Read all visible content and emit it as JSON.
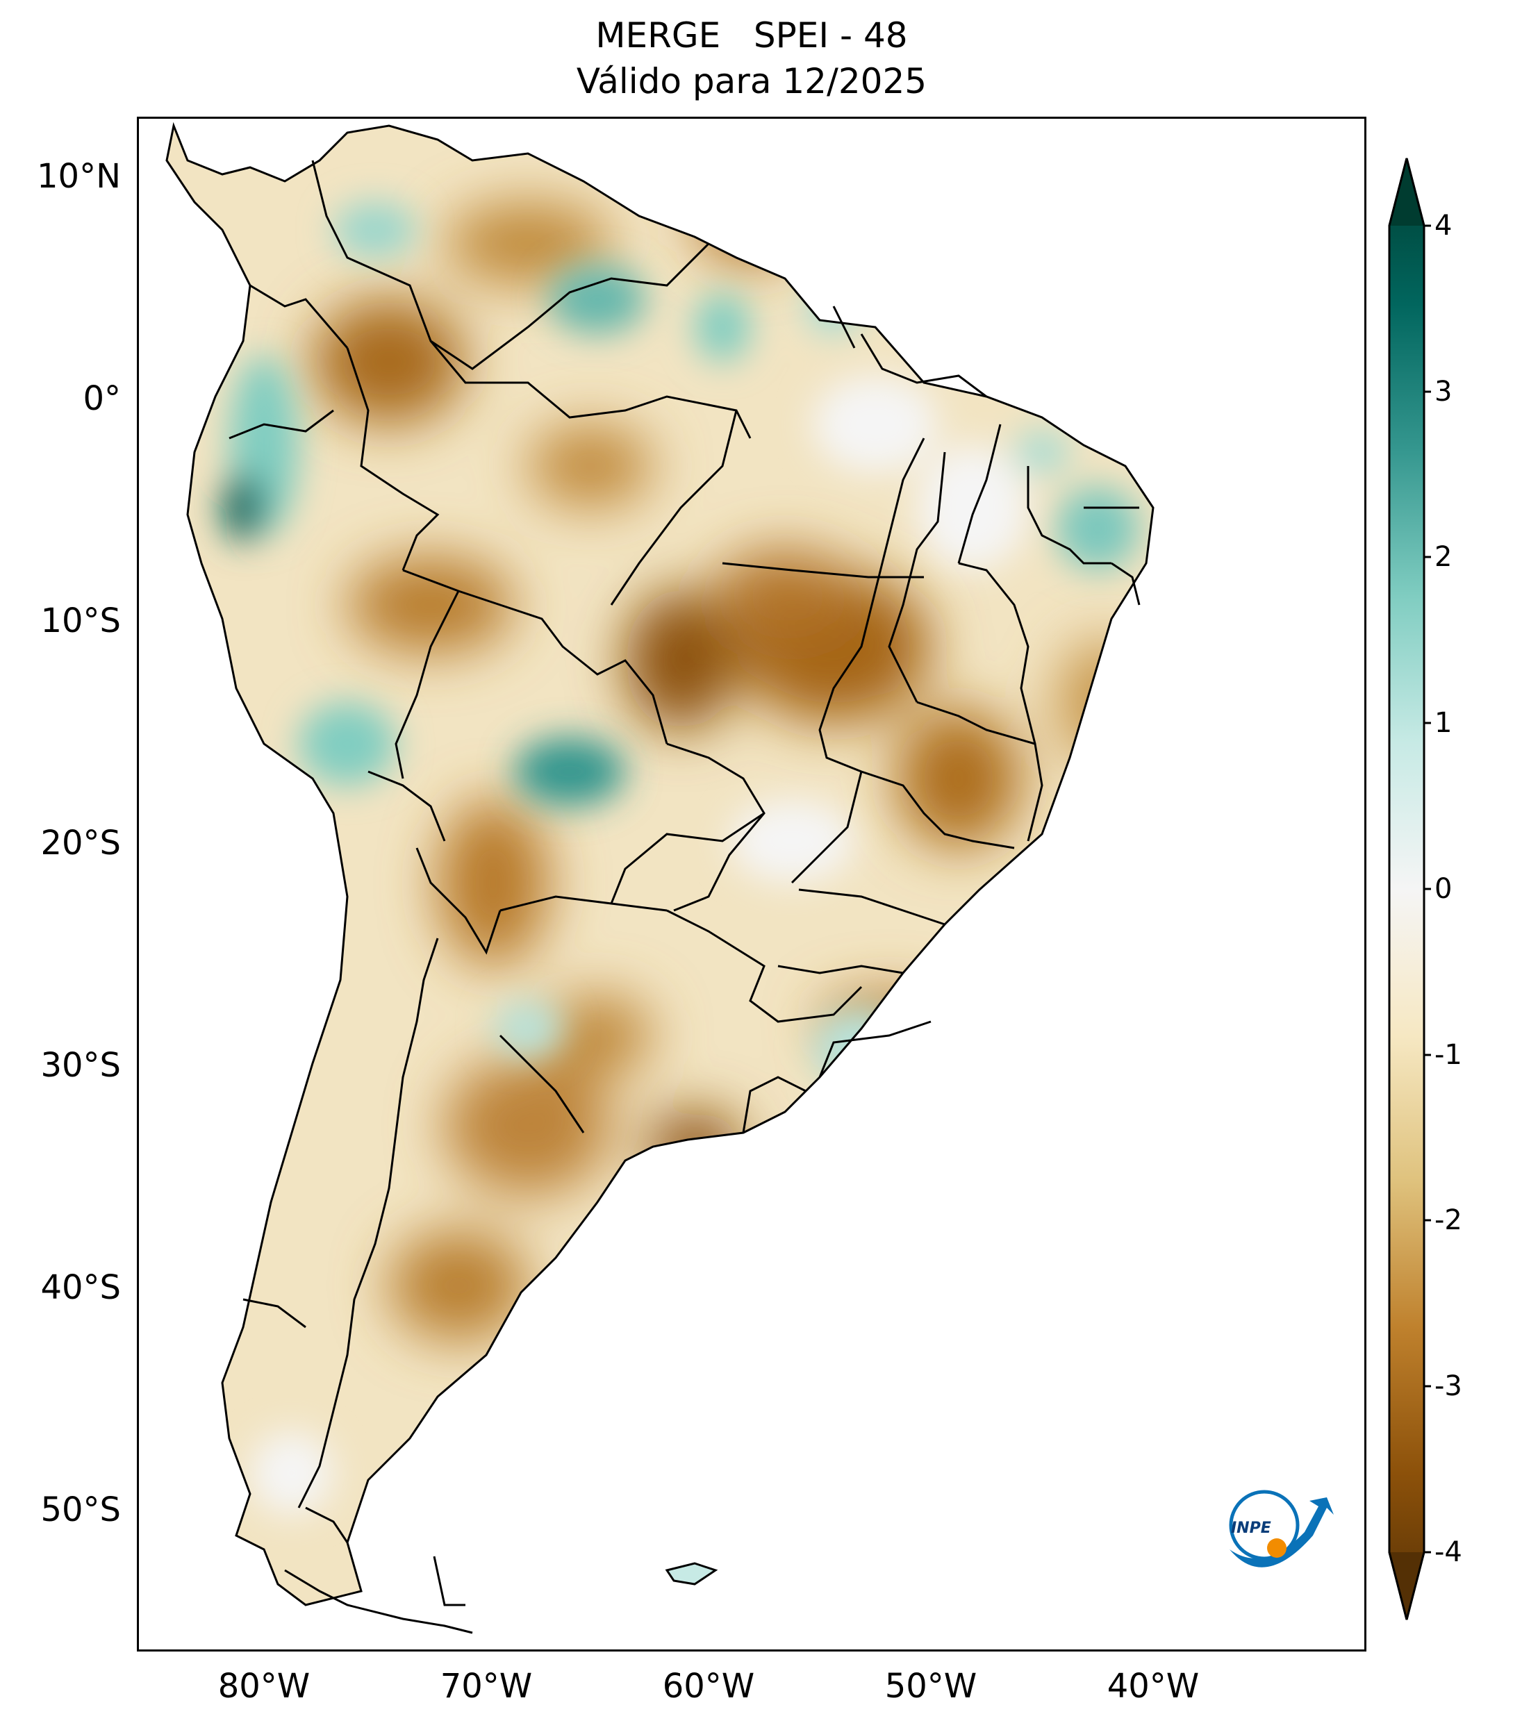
{
  "title": {
    "line1": "MERGE   SPEI - 48",
    "line2": "Válido para 12/2025"
  },
  "map": {
    "region": "South America",
    "variable": "SPEI - 48",
    "source": "MERGE",
    "lat_ticks": [
      "10°N",
      "0°",
      "10°S",
      "20°S",
      "30°S",
      "40°S",
      "50°S"
    ],
    "lon_ticks": [
      "80°W",
      "70°W",
      "60°W",
      "50°W",
      "40°W"
    ],
    "logo": "INPE"
  },
  "colorbar": {
    "colormap": "BrBG",
    "min": -4,
    "max": 4,
    "extend": "both",
    "ticks": [
      "4",
      "3",
      "2",
      "1",
      "0",
      "-1",
      "-2",
      "-3",
      "-4"
    ],
    "colors": {
      "wet_extreme": "#003c30",
      "wet_strong": "#01665e",
      "wet": "#35978f",
      "wet_light": "#80cdc1",
      "wet_faint": "#c7eae5",
      "neutral": "#f5f5f5",
      "dry_faint": "#f6e8c3",
      "dry_light": "#dfc27d",
      "dry": "#bf812d",
      "dry_strong": "#8c510a",
      "dry_extreme": "#543005"
    }
  }
}
